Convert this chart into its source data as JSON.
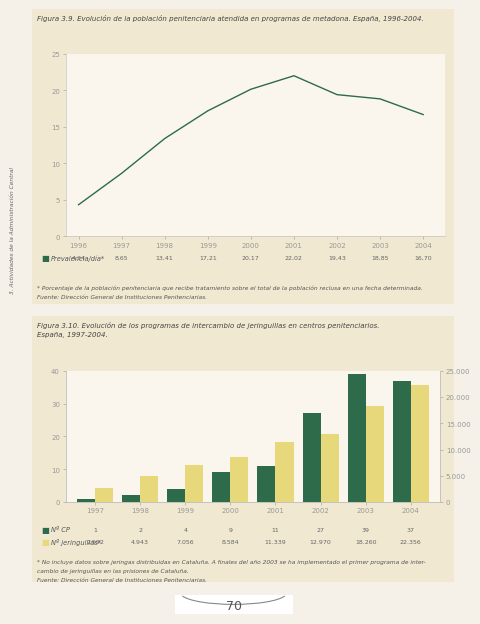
{
  "page_bg": "#f5f0e8",
  "panel_bg": "#f0e8d0",
  "chart_bg": "#faf6ee",
  "fig1": {
    "title": "Figura 3.9. Evolución de la población penitenciaria atendida en programas de metadona. España, 1996-2004.",
    "years": [
      1996,
      1997,
      1998,
      1999,
      2000,
      2001,
      2002,
      2003,
      2004
    ],
    "values": [
      4.34,
      8.65,
      13.41,
      17.21,
      20.17,
      22.02,
      19.43,
      18.85,
      16.7
    ],
    "line_color": "#2d6b4a",
    "ylim": [
      0,
      25
    ],
    "yticks": [
      0,
      5,
      10,
      15,
      20,
      25
    ],
    "legend_label": "Prevalencia/día*",
    "values_display": [
      "4,34",
      "8,65",
      "13,41",
      "17,21",
      "20,17",
      "22,02",
      "19,43",
      "18,85",
      "16,70"
    ],
    "footnote1": "* Porcentaje de la población penitenciaria que recibe tratamiento sobre el total de la población reclusa en una fecha determinada.",
    "footnote2": "Fuente: Dirección General de Instituciones Penitenciarias."
  },
  "fig2": {
    "title1": "Figura 3.10. Evolución de los programas de intercambio de jeringuillas en centros penitenciarios.",
    "title2": "España, 1997-2004.",
    "years": [
      1997,
      1998,
      1999,
      2000,
      2001,
      2002,
      2003,
      2004
    ],
    "ncp": [
      1,
      2,
      4,
      9,
      11,
      27,
      39,
      37
    ],
    "njeringas": [
      2592,
      4943,
      7056,
      8584,
      11339,
      12970,
      18260,
      22356
    ],
    "bar_color_dark": "#2d6b4a",
    "bar_color_light": "#e8d87c",
    "ylim_left": [
      0,
      40
    ],
    "ylim_right": [
      0,
      25000
    ],
    "yticks_left": [
      0,
      10,
      20,
      30,
      40
    ],
    "yticks_right": [
      0,
      5000,
      10000,
      15000,
      20000,
      25000
    ],
    "legend_ncp": "Nº CP",
    "legend_njer": "Nº jeringuillas*",
    "ncp_vals": [
      "1",
      "2",
      "4",
      "9",
      "11",
      "27",
      "39",
      "37"
    ],
    "njer_vals": [
      "2.592",
      "4.943",
      "7.056",
      "8.584",
      "11.339",
      "12.970",
      "18.260",
      "22.356"
    ],
    "footnote1": "* No incluye datos sobre jeringas distribuidas en Cataluña. A finales del año 2003 se ha implementado el primer programa de inter-",
    "footnote2": "cambio de jeringuillas en las prisiones de Cataluña.",
    "footnote3": "Fuente: Dirección General de Instituciones Penitenciarias."
  },
  "side_label": "3. Actividades de la Administración Central",
  "page_number": "70"
}
